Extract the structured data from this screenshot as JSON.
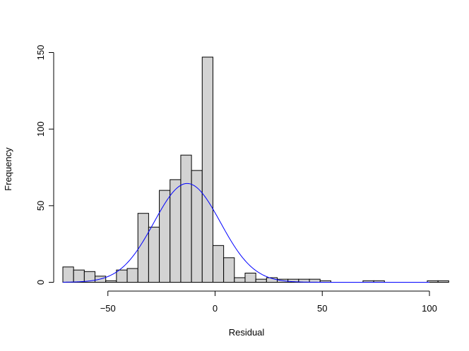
{
  "chart_data": {
    "type": "bar",
    "subtype": "histogram",
    "xlabel": "Residual",
    "ylabel": "Frequency",
    "bin_width": 5,
    "bin_start": -71,
    "counts": [
      10,
      8,
      7,
      4,
      1,
      8,
      9,
      45,
      36,
      60,
      67,
      83,
      73,
      147,
      24,
      16,
      3,
      6,
      2,
      3,
      2,
      2,
      2,
      2,
      1,
      0,
      0,
      0,
      1,
      1,
      0,
      0,
      0,
      0,
      1,
      1
    ],
    "xlim": [
      -71,
      100
    ],
    "ylim": [
      0,
      150
    ],
    "x_ticks": [
      -50,
      0,
      50,
      100
    ],
    "x_tick_labels": [
      "−50",
      "0",
      "50",
      "100"
    ],
    "y_ticks": [
      0,
      50,
      100,
      150
    ],
    "y_tick_labels": [
      "0",
      "50",
      "100",
      "150"
    ],
    "bar_fill": "#d3d3d3",
    "bar_stroke": "#000000",
    "normal_curve": {
      "color": "#0000ff",
      "mean": -13,
      "sd": 15.5,
      "peak": 64.5
    }
  }
}
